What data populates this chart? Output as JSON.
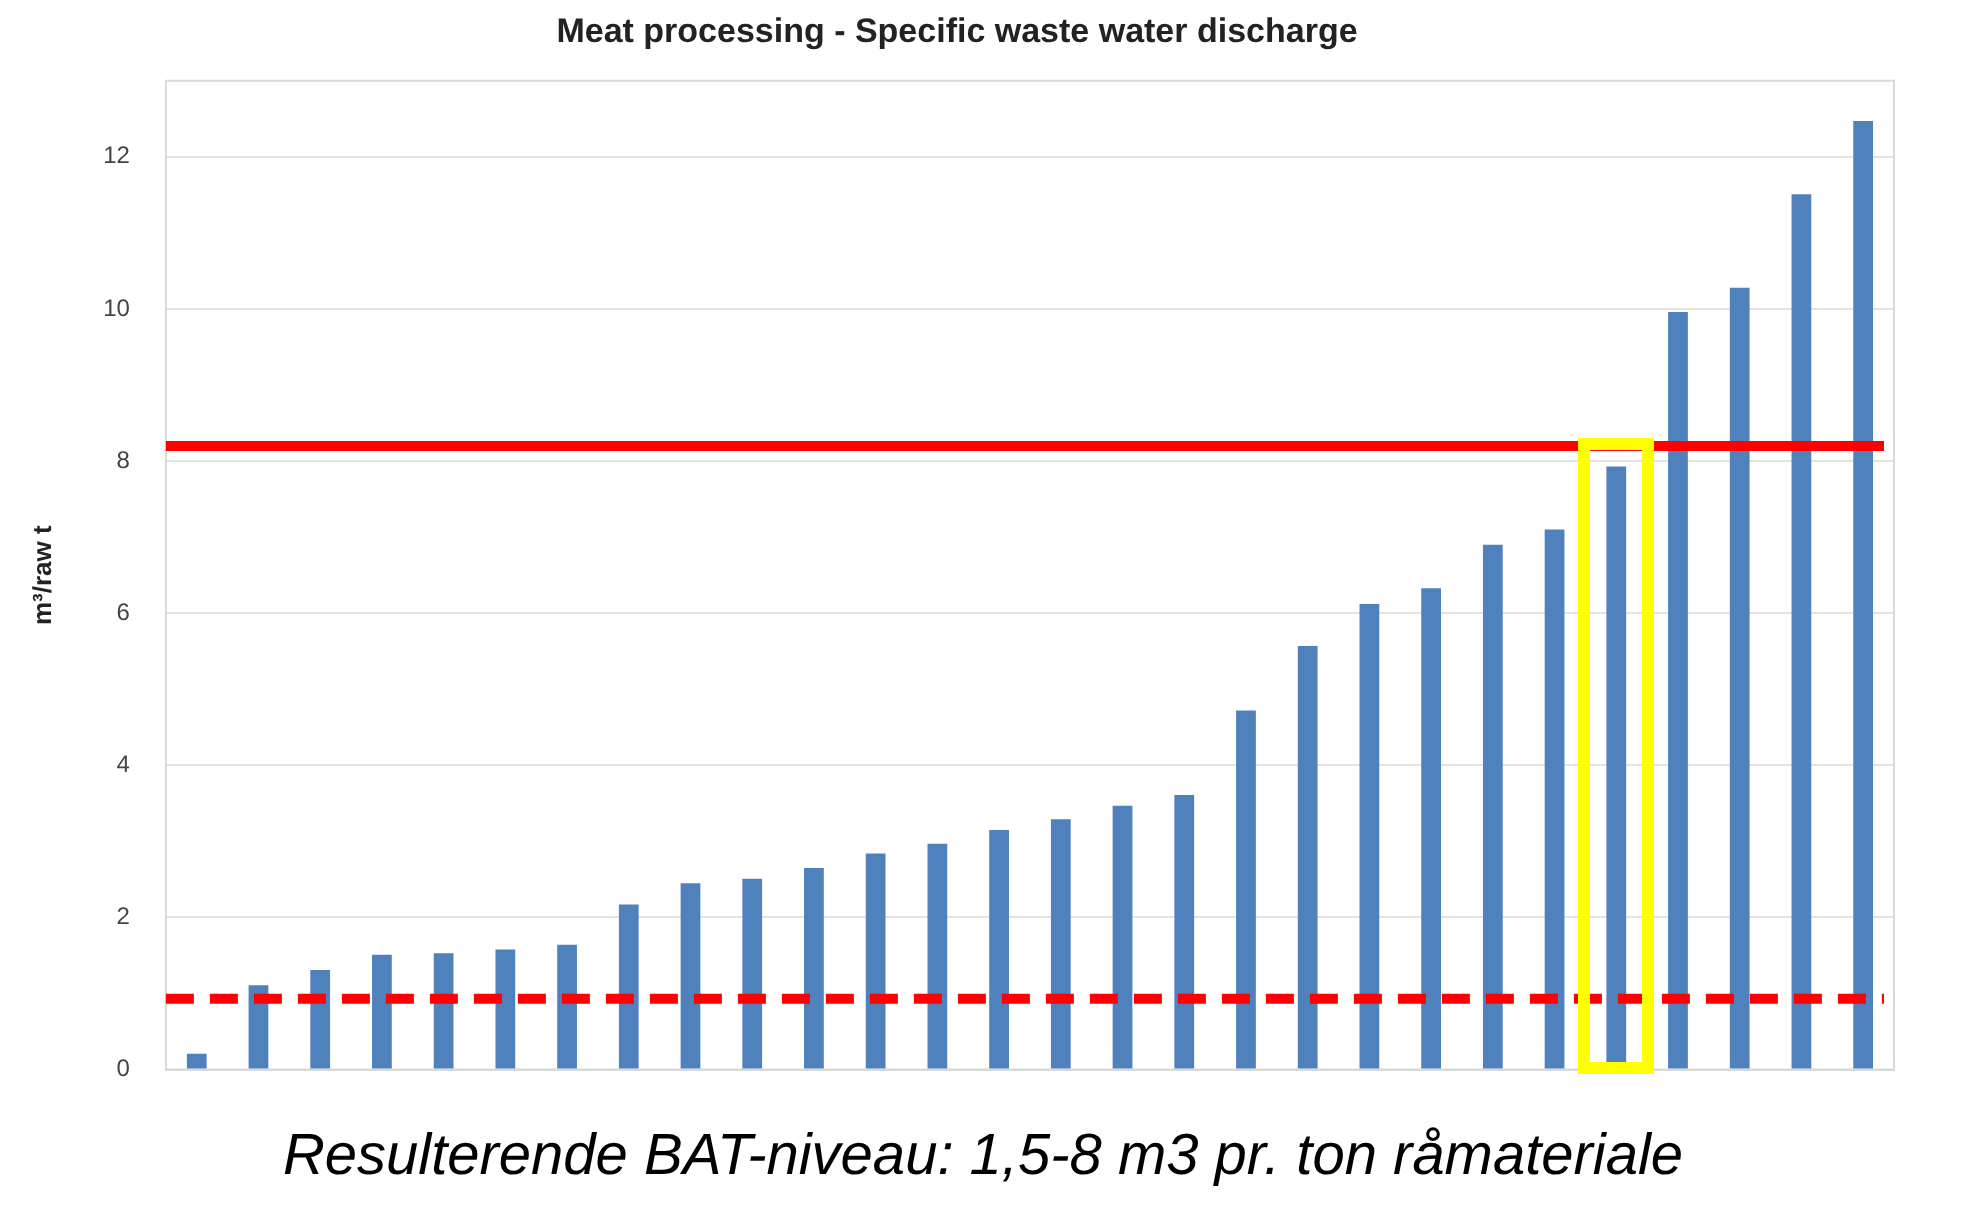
{
  "chart_data": {
    "type": "bar",
    "title": "Meat processing - Specific waste water discharge",
    "ylabel": "m³/raw t",
    "categories": [
      null,
      null,
      null,
      null,
      null,
      null,
      null,
      null,
      null,
      null,
      null,
      null,
      null,
      null,
      null,
      null,
      null,
      null,
      null,
      null,
      null,
      null,
      null,
      null,
      null,
      null,
      null,
      null
    ],
    "values": [
      0.21,
      1.11,
      1.31,
      1.51,
      1.53,
      1.58,
      1.64,
      2.17,
      2.45,
      2.51,
      2.65,
      2.84,
      2.97,
      3.15,
      3.29,
      3.47,
      3.61,
      4.72,
      5.57,
      6.12,
      6.33,
      6.9,
      7.1,
      7.93,
      9.96,
      10.28,
      11.51,
      12.47
    ],
    "color": "#4f81bd",
    "ylim": [
      0,
      13
    ],
    "yticks": [
      0,
      2,
      4,
      6,
      8,
      10,
      12
    ],
    "grid": "y",
    "ref_lines": [
      {
        "axis": "y",
        "value": 8.2,
        "color": "#ff0000",
        "line_style": "solid"
      },
      {
        "axis": "y",
        "value": 0.93,
        "color": "#ff0000",
        "line_style": "dashed"
      }
    ],
    "annotations": [
      "Resulterende BAT-niveau: 1,5-8 m3 pr. ton råmateriale"
    ]
  }
}
